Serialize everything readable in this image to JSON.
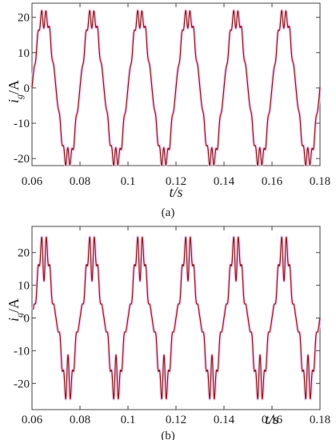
{
  "chart_data": [
    {
      "type": "line",
      "caption": "(a)",
      "ylabel_main": "i",
      "ylabel_sub": "g",
      "ylabel_unit": "/A",
      "xlabel_var": "t",
      "xlabel_unit": "/s",
      "xlim": [
        0.06,
        0.18
      ],
      "ylim": [
        -22,
        24
      ],
      "x_ticks": [
        0.06,
        0.08,
        0.1,
        0.12,
        0.14,
        0.16,
        0.18
      ],
      "x_tick_labels": [
        "0.06",
        "0.08",
        "0.1",
        "0.12",
        "0.14",
        "0.16",
        "0.18"
      ],
      "y_ticks": [
        20,
        10,
        0,
        -10,
        -20
      ],
      "y_tick_labels": [
        "20",
        "10",
        "0",
        "-10",
        "-20"
      ],
      "series": [
        {
          "color": "#8b1a1a",
          "frequency_hz": 50,
          "phase_deg": 0,
          "fundamental_amplitude": 20.5,
          "harmonics": [
            {
              "order": 5,
              "amplitude": 0.8,
              "phase_deg": 180
            },
            {
              "order": 7,
              "amplitude": 0.6,
              "phase_deg": 0
            },
            {
              "order": 11,
              "amplitude": 1.3,
              "phase_deg": 20
            },
            {
              "order": 13,
              "amplitude": 0.9,
              "phase_deg": 200
            }
          ],
          "x_start": 0.06,
          "x_end": 0.18,
          "start_value": -2,
          "peaks": [
            20.5,
            21.5,
            22,
            21.5,
            22,
            21.5
          ],
          "troughs": [
            -21,
            -22,
            -22.5,
            -21.5,
            -21.5,
            -21
          ]
        }
      ]
    },
    {
      "type": "line",
      "caption": "(b)",
      "ylabel_main": "i",
      "ylabel_sub": "g",
      "ylabel_unit": "/A",
      "xlabel_var": "t",
      "xlabel_unit": "/s",
      "xlim": [
        0.06,
        0.18
      ],
      "ylim": [
        -28,
        28
      ],
      "x_ticks": [
        0.06,
        0.08,
        0.1,
        0.12,
        0.14,
        0.16,
        0.18
      ],
      "x_tick_labels": [
        "0.06",
        "0.08",
        "0.1",
        "0.12",
        "0.14",
        "0.16",
        "0.18"
      ],
      "y_ticks": [
        20,
        10,
        0,
        -10,
        -20
      ],
      "y_tick_labels": [
        "20",
        "10",
        "0",
        "-10",
        "-20"
      ],
      "series": [
        {
          "color": "#8b1a1a",
          "frequency_hz": 50,
          "phase_deg": 0,
          "fundamental_amplitude": 19.5,
          "harmonics": [
            {
              "order": 3,
              "amplitude": 1.2,
              "phase_deg": 180
            },
            {
              "order": 5,
              "amplitude": 2.4,
              "phase_deg": 180
            },
            {
              "order": 7,
              "amplitude": 1.8,
              "phase_deg": 0
            },
            {
              "order": 9,
              "amplitude": 1.0,
              "phase_deg": 180
            },
            {
              "order": 11,
              "amplitude": 2.6,
              "phase_deg": 0
            },
            {
              "order": 13,
              "amplitude": 1.6,
              "phase_deg": 180
            }
          ],
          "x_start": 0.0605,
          "x_end": 0.18,
          "start_value": 6,
          "peaks": [
            24,
            23,
            23,
            23.5,
            23,
            23.5
          ],
          "troughs": [
            -24,
            -22.5,
            -23,
            -23,
            -24,
            -22.5
          ]
        }
      ]
    }
  ]
}
